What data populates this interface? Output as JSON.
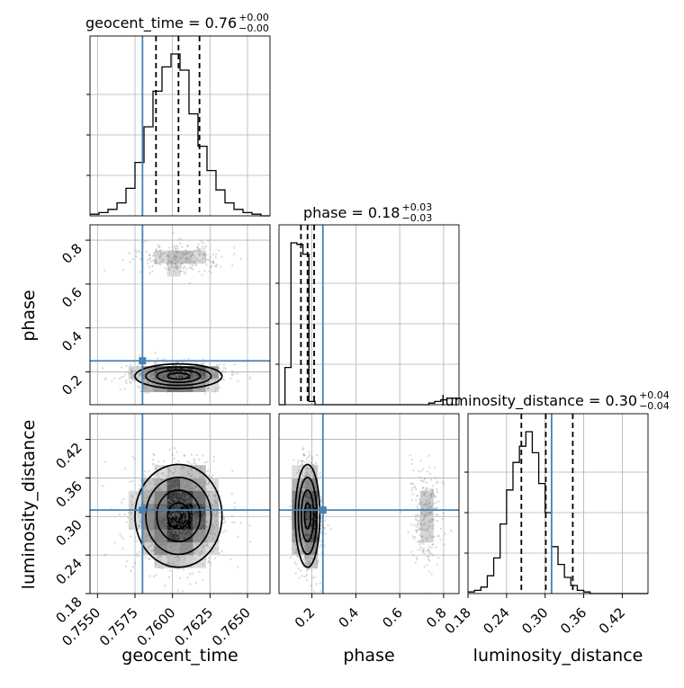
{
  "chart_data": {
    "type": "corner",
    "parameters": [
      {
        "name": "geocent_time",
        "axis_label": "geocent_time",
        "title_main": "geocent_time = 0.76",
        "title_sup": "+0.00",
        "title_sub": "−0.00",
        "range": [
          0.7545,
          0.7665
        ],
        "ticks": [
          0.755,
          0.7575,
          0.76,
          0.7625,
          0.765
        ],
        "tick_labels": [
          "0.7550",
          "0.7575",
          "0.7600",
          "0.7625",
          "0.7650"
        ],
        "truth": 0.758,
        "median": 0.7604,
        "q16": 0.7589,
        "q84": 0.7618,
        "hist_edges_start": 0.7545,
        "hist_bin_width": 0.0006,
        "hist_counts": [
          1,
          2,
          4,
          8,
          17,
          33,
          55,
          77,
          92,
          100,
          90,
          63,
          43,
          28,
          16,
          8,
          4,
          2,
          1,
          0
        ]
      },
      {
        "name": "phase",
        "axis_label": "phase",
        "title_main": "phase = 0.18",
        "title_sup": "+0.03",
        "title_sub": "−0.03",
        "range": [
          0.05,
          0.87
        ],
        "ticks": [
          0.2,
          0.4,
          0.6,
          0.8
        ],
        "tick_labels": [
          "0.2",
          "0.4",
          "0.6",
          "0.8"
        ],
        "truth": 0.25,
        "median": 0.18,
        "q16": 0.15,
        "q84": 0.21,
        "hist_edges_start": 0.05,
        "hist_bin_width": 0.0273,
        "hist_counts": [
          0,
          23,
          100,
          99,
          93,
          2,
          0,
          0,
          0,
          0,
          0,
          0,
          0,
          0,
          0,
          0,
          0,
          0,
          0,
          0,
          0,
          0,
          0,
          0,
          0,
          1,
          2,
          3,
          4,
          4
        ]
      },
      {
        "name": "luminosity_distance",
        "axis_label": "luminosity_distance",
        "title_main": "luminosity_distance = 0.30",
        "title_sup": "+0.04",
        "title_sub": "−0.04",
        "range": [
          0.18,
          0.46
        ],
        "ticks": [
          0.18,
          0.24,
          0.3,
          0.36,
          0.42
        ],
        "tick_labels": [
          "0.18",
          "0.24",
          "0.30",
          "0.36",
          "0.42"
        ],
        "truth": 0.31,
        "median": 0.301,
        "q16": 0.263,
        "q84": 0.343,
        "hist_edges_start": 0.18,
        "hist_bin_width": 0.01,
        "hist_counts": [
          1,
          2,
          4,
          11,
          22,
          43,
          64,
          81,
          91,
          100,
          87,
          68,
          50,
          29,
          18,
          10,
          5,
          2,
          1,
          0,
          0,
          0,
          0,
          0,
          0,
          0,
          0,
          0
        ]
      }
    ],
    "scatter_cloud_fraction_secondary_mode": 0.18,
    "truth_color": "#4682b4",
    "grid": true
  }
}
